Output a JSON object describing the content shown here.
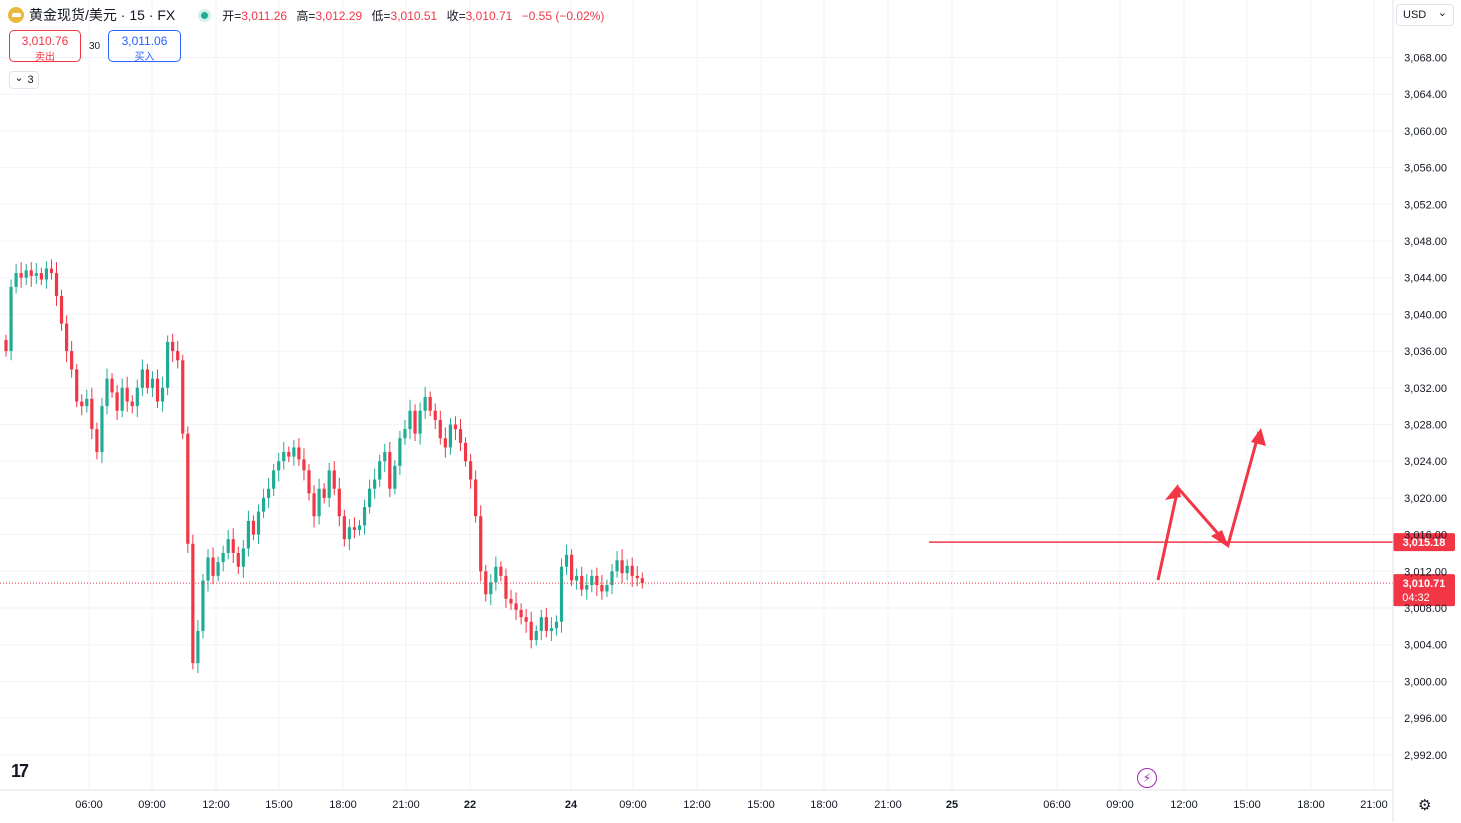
{
  "symbol": {
    "title": "黄金现货/美元 · 15 · FX",
    "ohlc": {
      "open_label": "开=",
      "open": "3,011.26",
      "high_label": "高=",
      "high": "3,012.29",
      "low_label": "低=",
      "low": "3,010.51",
      "close_label": "收=",
      "close": "3,010.71",
      "change": "−0.55 (−0.02%)"
    }
  },
  "trade": {
    "sell_price": "3,010.76",
    "sell_label": "卖出",
    "spread": "30",
    "buy_price": "3,011.06",
    "buy_label": "买入"
  },
  "indicator_toggle": {
    "chevron": "⌄",
    "count": "3"
  },
  "currency_selector": {
    "value": "USD",
    "chevron": "⌄"
  },
  "badges": {
    "line_price": "3,015.18",
    "last_price": "3,010.71",
    "countdown": "04:32"
  },
  "icons": {
    "logo": "gold-coin-icon",
    "tv": "tradingview-logo-icon",
    "flash": "lightning-icon",
    "settings": "gear-icon"
  },
  "colors": {
    "up": "#22ab94",
    "down": "#f23645",
    "annotation": "#f23645",
    "accent": "#2962ff"
  },
  "chart_data": {
    "type": "candlestick",
    "title": "黄金现货/美元 · 15 · FX",
    "y_ticks": [
      "3,068.00",
      "3,064.00",
      "3,060.00",
      "3,056.00",
      "3,052.00",
      "3,048.00",
      "3,044.00",
      "3,040.00",
      "3,036.00",
      "3,032.00",
      "3,028.00",
      "3,024.00",
      "3,020.00",
      "3,016.00",
      "3,012.00",
      "3,008.00",
      "3,004.00",
      "3,000.00",
      "2,996.00",
      "2,992.00"
    ],
    "x_ticks": [
      "06:00",
      "09:00",
      "12:00",
      "15:00",
      "18:00",
      "21:00",
      "22",
      "24",
      "09:00",
      "12:00",
      "15:00",
      "18:00",
      "21:00",
      "25",
      "06:00",
      "09:00",
      "12:00",
      "15:00",
      "18:00",
      "21:00"
    ],
    "ylim": [
      2990.2,
      3069.2
    ],
    "close_path": [
      3036,
      3043,
      3044.5,
      3044,
      3044.8,
      3044.2,
      3044.5,
      3043.8,
      3045,
      3044.5,
      3042,
      3039,
      3036,
      3034,
      3030.5,
      3030,
      3030.8,
      3027.5,
      3025,
      3030,
      3033,
      3031.5,
      3029.5,
      3032,
      3030.5,
      3030,
      3032,
      3034,
      3032,
      3033,
      3030.5,
      3032,
      3037,
      3036,
      3035,
      3027,
      3015,
      3002,
      3005.5,
      3011,
      3013.5,
      3011.5,
      3013,
      3014,
      3015.5,
      3014,
      3012.5,
      3014.5,
      3017.5,
      3016,
      3018.5,
      3020,
      3021,
      3023,
      3024,
      3025,
      3024.5,
      3025.5,
      3024.2,
      3023,
      3020.5,
      3018,
      3021,
      3020,
      3023,
      3021,
      3018,
      3015.5,
      3016.8,
      3016.5,
      3017,
      3019,
      3021,
      3022,
      3024,
      3025,
      3021,
      3023.5,
      3026.5,
      3027.5,
      3029.5,
      3027,
      3029.5,
      3031,
      3029.5,
      3028.5,
      3026.5,
      3025.5,
      3028,
      3027.5,
      3026,
      3024,
      3022,
      3018,
      3012,
      3009.5,
      3010.8,
      3012.5,
      3011.5,
      3009,
      3008.5,
      3007.8,
      3007,
      3006.5,
      3004.5,
      3005.5,
      3007,
      3005.5,
      3005.8,
      3006.5,
      3012.5,
      3013.8,
      3011,
      3011.5,
      3010,
      3010.5,
      3011.5,
      3010.5,
      3009.8,
      3010.5,
      3012,
      3013.2,
      3011.8,
      3012.6,
      3011.5,
      3011.26,
      3010.71
    ],
    "horizontal_line": 3015.18,
    "last_price": 3010.71
  }
}
